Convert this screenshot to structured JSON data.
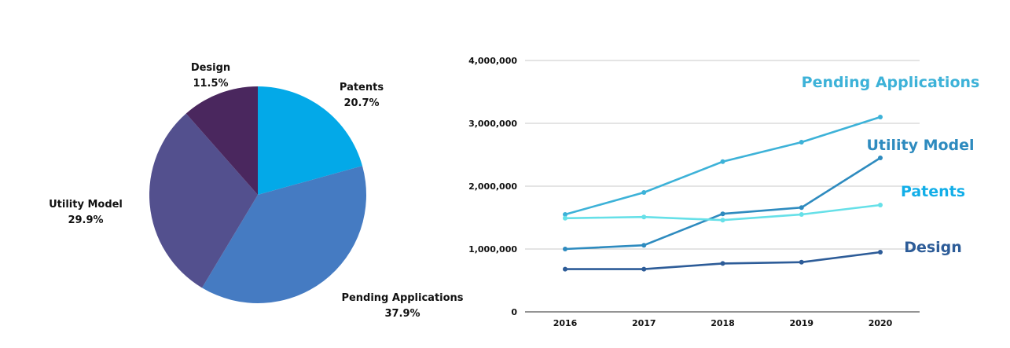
{
  "chart_data": [
    {
      "type": "pie",
      "slices": [
        {
          "label": "Patents",
          "value": 20.7,
          "value_label": "20.7%",
          "color": "#03A9E8"
        },
        {
          "label": "Pending Applications",
          "value": 37.9,
          "value_label": "37.9%",
          "color": "#457BC2"
        },
        {
          "label": "Utility Model",
          "value": 29.9,
          "value_label": "29.9%",
          "color": "#53508E"
        },
        {
          "label": "Design",
          "value": 11.5,
          "value_label": "11.5%",
          "color": "#4A275E"
        }
      ]
    },
    {
      "type": "line",
      "x": [
        "2016",
        "2017",
        "2018",
        "2019",
        "2020"
      ],
      "ylim": [
        0,
        4000000
      ],
      "yticks": [
        0,
        1000000,
        2000000,
        3000000,
        4000000
      ],
      "ytick_labels": [
        "0",
        "1,000,000",
        "2,000,000",
        "3,000,000",
        "4,000,000"
      ],
      "grid": true,
      "series": [
        {
          "name": "Pending Applications",
          "color": "#3DB2D8",
          "values": [
            1550000,
            1900000,
            2390000,
            2700000,
            3100000
          ]
        },
        {
          "name": "Utility Model",
          "color": "#2E8BBF",
          "values": [
            1000000,
            1060000,
            1560000,
            1660000,
            2450000
          ]
        },
        {
          "name": "Patents",
          "color": "#66E0E8",
          "label_color": "#12AEE8",
          "values": [
            1490000,
            1510000,
            1460000,
            1550000,
            1700000
          ]
        },
        {
          "name": "Design",
          "color": "#2D5C98",
          "values": [
            680000,
            680000,
            770000,
            790000,
            950000
          ]
        }
      ]
    }
  ]
}
